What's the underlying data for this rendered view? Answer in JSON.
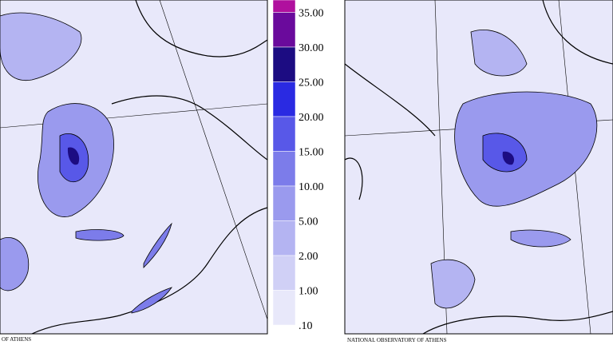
{
  "legend": {
    "items": [
      {
        "label": "35.00",
        "color": "#b0109e"
      },
      {
        "label": "30.00",
        "color": "#6a0a9c"
      },
      {
        "label": "25.00",
        "color": "#1c0c82"
      },
      {
        "label": "20.00",
        "color": "#2a2ae2"
      },
      {
        "label": "15.00",
        "color": "#5858e8"
      },
      {
        "label": "10.00",
        "color": "#7c7cea"
      },
      {
        "label": "5.00",
        "color": "#9a9aee"
      },
      {
        "label": "2.00",
        "color": "#b4b4f2"
      },
      {
        "label": "1.00",
        "color": "#d0d0f6"
      },
      {
        "label": ".10",
        "color": "#e8e8fa"
      }
    ]
  },
  "panels": [
    {
      "caption": "OF ATHENS"
    },
    {
      "caption": "NATIONAL OBSERVATORY OF ATHENS"
    }
  ]
}
